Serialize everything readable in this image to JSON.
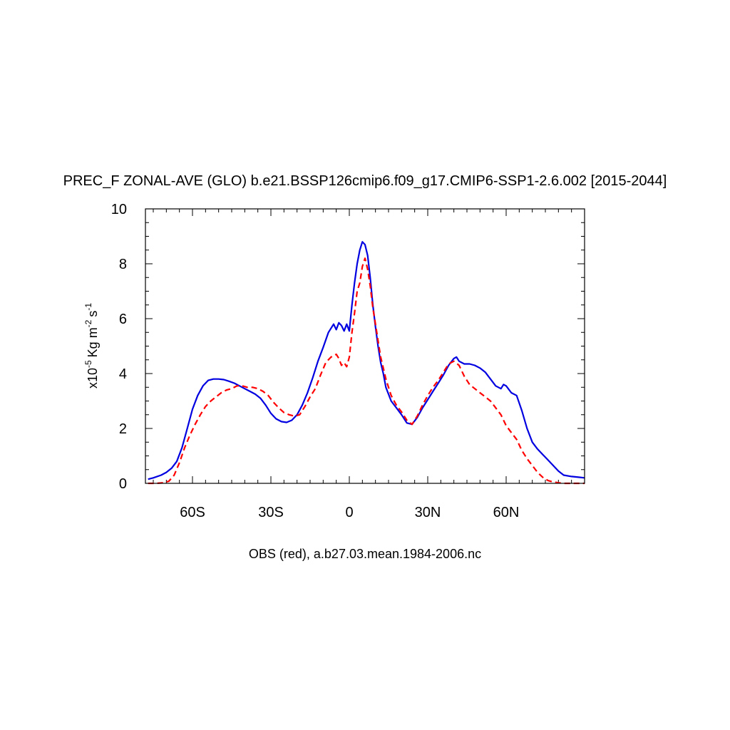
{
  "chart_data": {
    "type": "line",
    "title": "PREC_F ZONAL-AVE (GLO) b.e21.BSSP126cmip6.f09_g17.CMIP6-SSP1-2.6.002 [2015-2044]",
    "xlabel": "OBS (red), a.b27.03.mean.1984-2006.nc",
    "ylabel": {
      "prefix": "x10",
      "exponent": "-5",
      "unit_kg": "Kg m",
      "exp_m": "-2",
      "unit_s": "s",
      "exp_s": "-1"
    },
    "xlim": [
      -78,
      90
    ],
    "ylim": [
      0,
      10
    ],
    "x_ticks": [
      {
        "value": -60,
        "label": "60S"
      },
      {
        "value": -30,
        "label": "30S"
      },
      {
        "value": 0,
        "label": "0"
      },
      {
        "value": 30,
        "label": "30N"
      },
      {
        "value": 60,
        "label": "60N"
      }
    ],
    "y_ticks": [
      {
        "value": 0,
        "label": "0"
      },
      {
        "value": 2,
        "label": "2"
      },
      {
        "value": 4,
        "label": "4"
      },
      {
        "value": 6,
        "label": "6"
      },
      {
        "value": 8,
        "label": "8"
      },
      {
        "value": 10,
        "label": "10"
      }
    ],
    "series": [
      {
        "color": "#0000e0",
        "style": "solid",
        "x": [
          -77,
          -75,
          -72,
          -70,
          -68,
          -66,
          -64,
          -62,
          -60,
          -58,
          -56,
          -54,
          -52,
          -50,
          -48,
          -46,
          -44,
          -42,
          -40,
          -38,
          -36,
          -34,
          -32,
          -30,
          -28,
          -26,
          -24,
          -22,
          -20,
          -18,
          -16,
          -14,
          -12,
          -10,
          -8,
          -6,
          -5,
          -4,
          -3,
          -2,
          -1,
          0,
          1,
          2,
          3,
          4,
          5,
          6,
          7,
          8,
          9,
          10,
          11,
          12,
          13,
          14,
          16,
          18,
          20,
          22,
          24,
          26,
          28,
          30,
          32,
          34,
          36,
          38,
          40,
          41,
          42,
          44,
          46,
          48,
          50,
          52,
          54,
          56,
          58,
          59,
          60,
          62,
          64,
          66,
          68,
          70,
          72,
          74,
          76,
          78,
          80,
          82,
          85,
          88,
          90
        ],
        "y": [
          0.15,
          0.2,
          0.3,
          0.4,
          0.55,
          0.8,
          1.3,
          2.0,
          2.7,
          3.2,
          3.55,
          3.75,
          3.8,
          3.8,
          3.78,
          3.72,
          3.65,
          3.55,
          3.45,
          3.35,
          3.25,
          3.1,
          2.85,
          2.55,
          2.35,
          2.25,
          2.22,
          2.3,
          2.5,
          2.85,
          3.3,
          3.85,
          4.45,
          4.95,
          5.5,
          5.8,
          5.6,
          5.85,
          5.75,
          5.55,
          5.8,
          5.55,
          6.5,
          7.3,
          8.0,
          8.5,
          8.8,
          8.7,
          8.3,
          7.5,
          6.5,
          5.7,
          5.0,
          4.4,
          4.0,
          3.5,
          3.0,
          2.75,
          2.5,
          2.2,
          2.15,
          2.4,
          2.75,
          3.05,
          3.35,
          3.65,
          3.95,
          4.3,
          4.55,
          4.6,
          4.45,
          4.35,
          4.35,
          4.3,
          4.2,
          4.05,
          3.8,
          3.55,
          3.45,
          3.6,
          3.55,
          3.3,
          3.2,
          2.65,
          2.0,
          1.5,
          1.25,
          1.05,
          0.85,
          0.65,
          0.45,
          0.3,
          0.25,
          0.22,
          0.2
        ]
      },
      {
        "color": "#ff0000",
        "style": "dashed",
        "x": [
          -77,
          -74,
          -71,
          -69,
          -67,
          -65,
          -63,
          -61,
          -59,
          -57,
          -55,
          -53,
          -51,
          -49,
          -47,
          -45,
          -43,
          -41,
          -39,
          -37,
          -35,
          -33,
          -31,
          -29,
          -27,
          -25,
          -23,
          -21,
          -19,
          -17,
          -15,
          -13,
          -11,
          -9,
          -7,
          -5,
          -4,
          -3,
          -2,
          -1,
          0,
          1,
          2,
          3,
          4,
          5,
          6,
          7,
          8,
          9,
          10,
          11,
          12,
          13,
          14,
          16,
          18,
          20,
          22,
          24,
          26,
          28,
          30,
          32,
          34,
          36,
          38,
          40,
          42,
          44,
          46,
          48,
          50,
          52,
          54,
          56,
          58,
          60,
          62,
          64,
          66,
          68,
          70,
          72,
          74,
          76,
          78,
          80,
          82,
          85,
          88,
          90
        ],
        "y": [
          0.0,
          0.0,
          0.02,
          0.08,
          0.3,
          0.75,
          1.3,
          1.75,
          2.15,
          2.5,
          2.8,
          3.0,
          3.15,
          3.3,
          3.4,
          3.45,
          3.55,
          3.55,
          3.5,
          3.5,
          3.45,
          3.35,
          3.2,
          2.95,
          2.75,
          2.58,
          2.5,
          2.45,
          2.5,
          2.8,
          3.15,
          3.45,
          3.95,
          4.4,
          4.6,
          4.7,
          4.55,
          4.3,
          4.4,
          4.25,
          4.6,
          5.5,
          6.2,
          7.0,
          7.3,
          7.9,
          8.2,
          7.8,
          7.2,
          6.4,
          5.8,
          5.2,
          4.6,
          4.2,
          3.8,
          3.2,
          2.85,
          2.6,
          2.3,
          2.15,
          2.45,
          2.85,
          3.2,
          3.5,
          3.75,
          4.05,
          4.35,
          4.45,
          4.3,
          3.9,
          3.6,
          3.45,
          3.3,
          3.15,
          3.0,
          2.75,
          2.5,
          2.1,
          1.85,
          1.6,
          1.2,
          0.9,
          0.65,
          0.4,
          0.22,
          0.1,
          0.05,
          0.02,
          0.0,
          0.0,
          0.0,
          0.0
        ]
      }
    ]
  }
}
